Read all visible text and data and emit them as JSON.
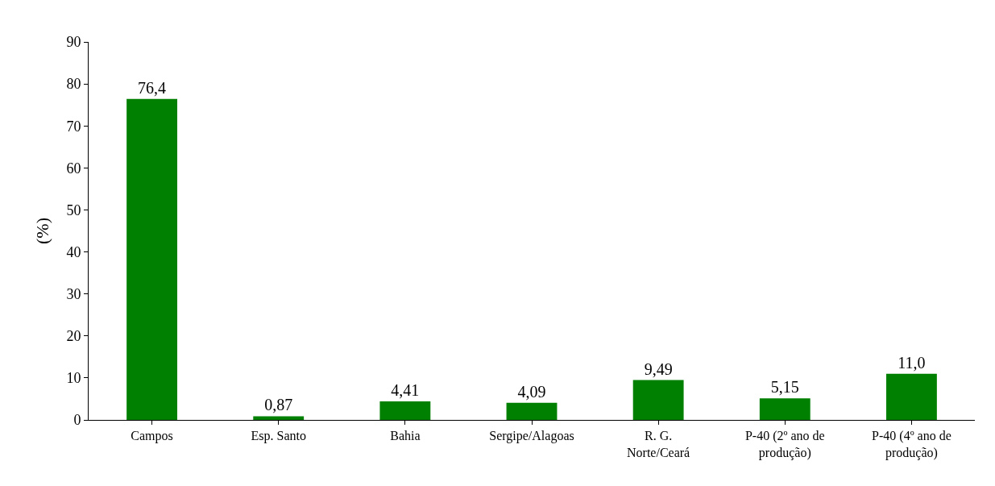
{
  "chart_data": {
    "type": "bar",
    "ylabel": "(%)",
    "categories": [
      "Campos",
      "Esp. Santo",
      "Bahia",
      "Sergipe/Alagoas",
      "R. G. Norte/Ceará",
      "P-40 (2º ano de produção)",
      "P-40 (4º ano de produção)"
    ],
    "values": [
      76.4,
      0.87,
      4.41,
      4.09,
      9.49,
      5.15,
      11.0
    ],
    "value_labels": [
      "76,4",
      "0,87",
      "4,41",
      "4,09",
      "9,49",
      "5,15",
      "11,0"
    ],
    "color": "#008000",
    "ylim": [
      0,
      90
    ],
    "yticks": [
      0,
      10,
      20,
      30,
      40,
      50,
      60,
      70,
      80,
      90
    ],
    "grid": false
  }
}
